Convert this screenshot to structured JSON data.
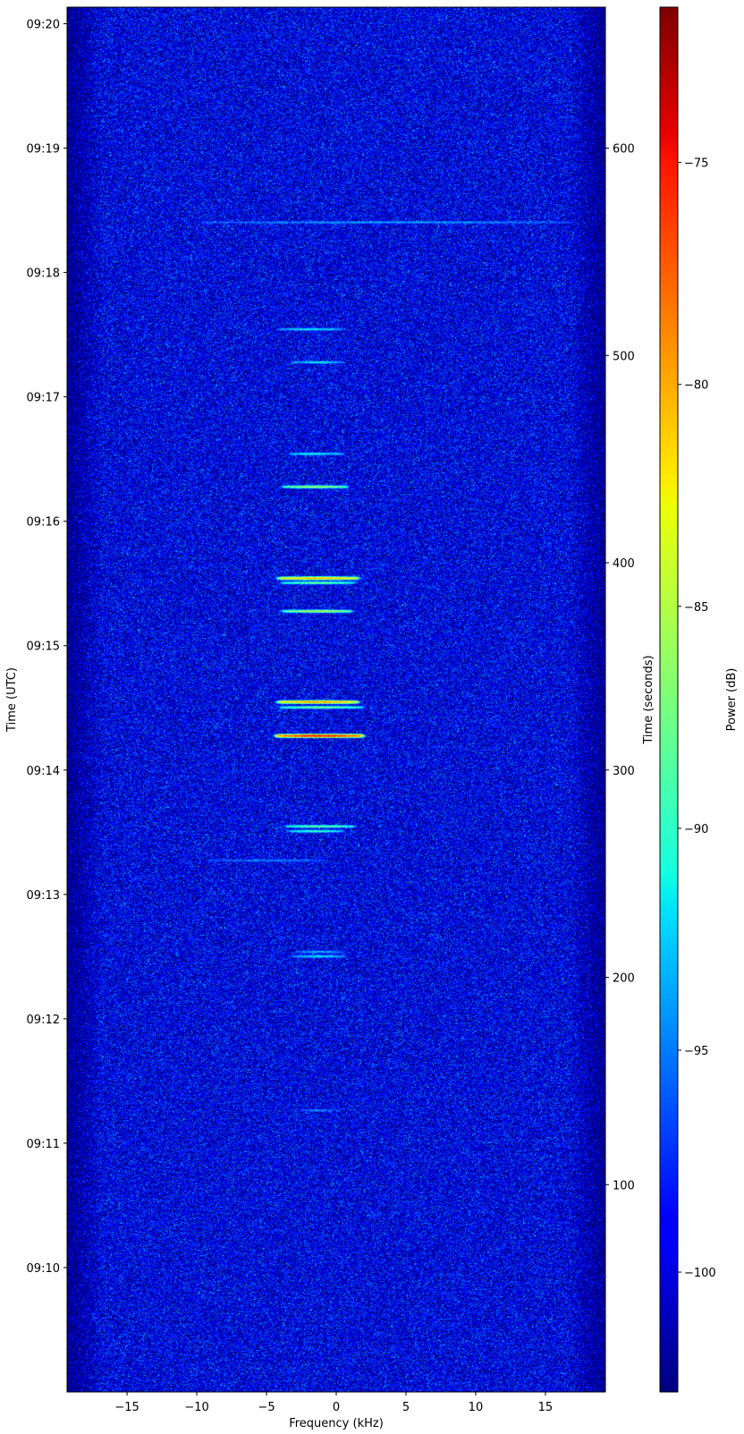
{
  "chart_data": {
    "type": "heatmap",
    "subtype": "spectrogram",
    "colormap": "jet",
    "xlabel": "Frequency (kHz)",
    "ylabel_left": "Time (UTC)",
    "ylabel_right": "Time (seconds)",
    "colorbar_label": "Power (dB)",
    "xlim": [
      -19.3,
      19.3
    ],
    "ylim_seconds": [
      0,
      668
    ],
    "clim": [
      -102.7,
      -71.5
    ],
    "x_ticks": [
      -15,
      -10,
      -5,
      0,
      5,
      10,
      15
    ],
    "x_tick_labels": [
      "−15",
      "−10",
      "−5",
      "0",
      "5",
      "10",
      "15"
    ],
    "y_left_ticks_seconds": [
      60,
      120,
      180,
      240,
      300,
      360,
      420,
      480,
      540,
      600,
      660
    ],
    "y_left_tick_labels": [
      "09:10",
      "09:11",
      "09:12",
      "09:13",
      "09:14",
      "09:15",
      "09:16",
      "09:17",
      "09:18",
      "09:19",
      "09:20"
    ],
    "y_right_ticks": [
      100,
      200,
      300,
      400,
      500,
      600
    ],
    "y_right_tick_labels": [
      "100",
      "200",
      "300",
      "400",
      "500",
      "600"
    ],
    "colorbar_ticks": [
      -100,
      -95,
      -90,
      -85,
      -80,
      -75
    ],
    "colorbar_tick_labels": [
      "−100",
      "−95",
      "−90",
      "−85",
      "−80",
      "−75"
    ],
    "noise_floor_db": -99,
    "signals": [
      {
        "t": 564.2,
        "f0": -9.5,
        "f1": 16.5,
        "peak_db": -95
      },
      {
        "t": 512.6,
        "f0": -3.9,
        "f1": 0.3,
        "peak_db": -92
      },
      {
        "t": 496.7,
        "f0": -3.0,
        "f1": 0.2,
        "peak_db": -92
      },
      {
        "t": 452.5,
        "f0": -3.2,
        "f1": 0.3,
        "peak_db": -91
      },
      {
        "t": 436.6,
        "f0": -3.6,
        "f1": 0.6,
        "peak_db": -86
      },
      {
        "t": 392.5,
        "f0": -3.9,
        "f1": 1.3,
        "peak_db": -80
      },
      {
        "t": 390.3,
        "f0": -3.7,
        "f1": 1.1,
        "peak_db": -88
      },
      {
        "t": 376.6,
        "f0": -3.6,
        "f1": 0.9,
        "peak_db": -85
      },
      {
        "t": 332.8,
        "f0": -3.9,
        "f1": 1.3,
        "peak_db": -79
      },
      {
        "t": 330.2,
        "f0": -3.8,
        "f1": 1.7,
        "peak_db": -88
      },
      {
        "t": 316.5,
        "f0": -4.0,
        "f1": 1.6,
        "peak_db": -75
      },
      {
        "t": 272.8,
        "f0": -3.4,
        "f1": 1.1,
        "peak_db": -88
      },
      {
        "t": 270.5,
        "f0": -3.2,
        "f1": 0.3,
        "peak_db": -90
      },
      {
        "t": 256.4,
        "f0": -9.0,
        "f1": -1.0,
        "peak_db": -96
      },
      {
        "t": 212.3,
        "f0": -2.7,
        "f1": 0.3,
        "peak_db": -94
      },
      {
        "t": 210.1,
        "f0": -3.0,
        "f1": 0.4,
        "peak_db": -92
      },
      {
        "t": 135.8,
        "f0": -2.5,
        "f1": 0.0,
        "peak_db": -96
      }
    ]
  }
}
